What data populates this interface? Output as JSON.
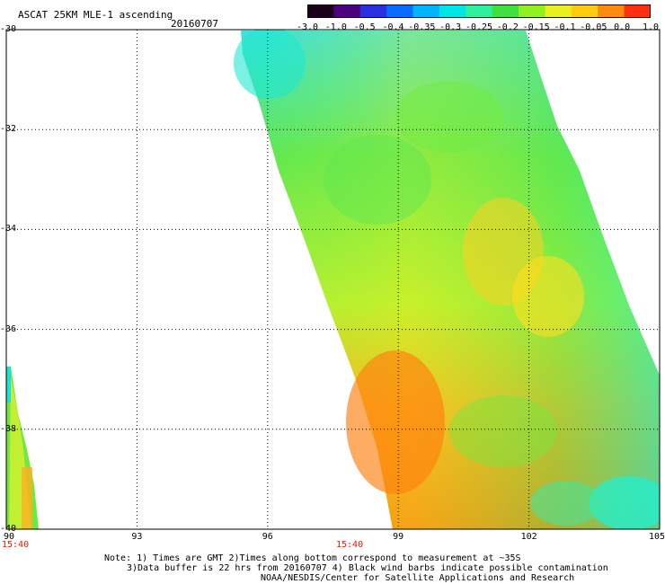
{
  "header": {
    "title": "ASCAT 25KM MLE-1 ascending",
    "date": "20160707"
  },
  "colorbar": {
    "labels": [
      "-3.0",
      "-1.0",
      "-0.5",
      "-0.4",
      "-0.35",
      "-0.3",
      "-0.25",
      "-0.2",
      "-0.15",
      "-0.1",
      "-0.05",
      "0.0",
      "1.0"
    ],
    "colors": [
      "#1a0018",
      "#4b0080",
      "#2a30e0",
      "#0a6cff",
      "#00b4ff",
      "#00e6e6",
      "#30f0a0",
      "#40e040",
      "#90f020",
      "#e8f020",
      "#ffcc10",
      "#ff8a10",
      "#ff3010"
    ]
  },
  "axes": {
    "lat_labels": [
      "-30",
      "-32",
      "-34",
      "-36",
      "-38",
      "-40"
    ],
    "lon_labels": [
      "90",
      "93",
      "96",
      "99",
      "102",
      "105"
    ]
  },
  "times": {
    "left": "15:40",
    "center": "15:40"
  },
  "notes": {
    "line1": "Note: 1) Times are GMT 2)Times along bottom correspond to measurement at ~35S",
    "line2": "3)Data buffer is 22 hrs from 20160707 4) Black wind barbs indicate possible contamination",
    "line3": "NOAA/NESDIS/Center for Satellite Applications and Research"
  }
}
